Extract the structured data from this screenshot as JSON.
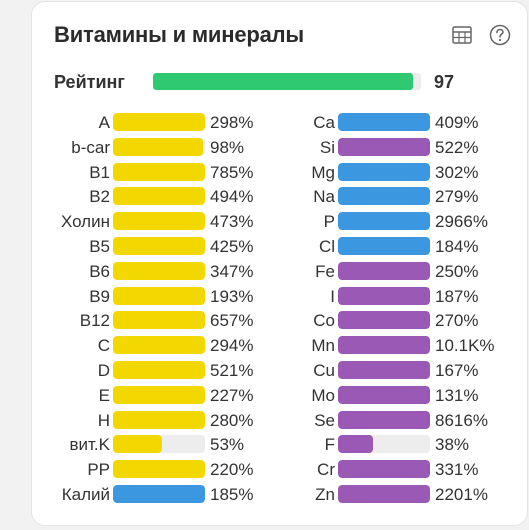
{
  "title": "Витамины и минералы",
  "icons": {
    "table": "table-icon",
    "help": "help-icon"
  },
  "colors": {
    "green": "#2ec971",
    "yellow": "#f3d800",
    "blue": "#3b97df",
    "purple": "#9b59b6",
    "track": "#ededed"
  },
  "rating": {
    "label": "Рейтинг",
    "value": "97",
    "fraction": 0.97
  },
  "vitamins": [
    {
      "name": "A",
      "value": "298%",
      "fill": 1.0,
      "color": "yellow"
    },
    {
      "name": "b-car",
      "value": "98%",
      "fill": 0.98,
      "color": "yellow"
    },
    {
      "name": "B1",
      "value": "785%",
      "fill": 1.0,
      "color": "yellow"
    },
    {
      "name": "B2",
      "value": "494%",
      "fill": 1.0,
      "color": "yellow"
    },
    {
      "name": "Холин",
      "value": "473%",
      "fill": 1.0,
      "color": "yellow"
    },
    {
      "name": "B5",
      "value": "425%",
      "fill": 1.0,
      "color": "yellow"
    },
    {
      "name": "B6",
      "value": "347%",
      "fill": 1.0,
      "color": "yellow"
    },
    {
      "name": "B9",
      "value": "193%",
      "fill": 1.0,
      "color": "yellow"
    },
    {
      "name": "B12",
      "value": "657%",
      "fill": 1.0,
      "color": "yellow"
    },
    {
      "name": "C",
      "value": "294%",
      "fill": 1.0,
      "color": "yellow"
    },
    {
      "name": "D",
      "value": "521%",
      "fill": 1.0,
      "color": "yellow"
    },
    {
      "name": "E",
      "value": "227%",
      "fill": 1.0,
      "color": "yellow"
    },
    {
      "name": "H",
      "value": "280%",
      "fill": 1.0,
      "color": "yellow"
    },
    {
      "name": "вит.K",
      "value": "53%",
      "fill": 0.53,
      "color": "yellow"
    },
    {
      "name": "PP",
      "value": "220%",
      "fill": 1.0,
      "color": "yellow"
    },
    {
      "name": "Калий",
      "value": "185%",
      "fill": 1.0,
      "color": "blue"
    }
  ],
  "minerals": [
    {
      "name": "Ca",
      "value": "409%",
      "fill": 1.0,
      "color": "blue"
    },
    {
      "name": "Si",
      "value": "522%",
      "fill": 1.0,
      "color": "purple"
    },
    {
      "name": "Mg",
      "value": "302%",
      "fill": 1.0,
      "color": "blue"
    },
    {
      "name": "Na",
      "value": "279%",
      "fill": 1.0,
      "color": "blue"
    },
    {
      "name": "P",
      "value": "2966%",
      "fill": 1.0,
      "color": "blue"
    },
    {
      "name": "Cl",
      "value": "184%",
      "fill": 1.0,
      "color": "blue"
    },
    {
      "name": "Fe",
      "value": "250%",
      "fill": 1.0,
      "color": "purple"
    },
    {
      "name": "I",
      "value": "187%",
      "fill": 1.0,
      "color": "purple"
    },
    {
      "name": "Co",
      "value": "270%",
      "fill": 1.0,
      "color": "purple"
    },
    {
      "name": "Mn",
      "value": "10.1K%",
      "fill": 1.0,
      "color": "purple"
    },
    {
      "name": "Cu",
      "value": "167%",
      "fill": 1.0,
      "color": "purple"
    },
    {
      "name": "Mo",
      "value": "131%",
      "fill": 1.0,
      "color": "purple"
    },
    {
      "name": "Se",
      "value": "8616%",
      "fill": 1.0,
      "color": "purple"
    },
    {
      "name": "F",
      "value": "38%",
      "fill": 0.38,
      "color": "purple"
    },
    {
      "name": "Cr",
      "value": "331%",
      "fill": 1.0,
      "color": "purple"
    },
    {
      "name": "Zn",
      "value": "2201%",
      "fill": 1.0,
      "color": "purple"
    }
  ]
}
